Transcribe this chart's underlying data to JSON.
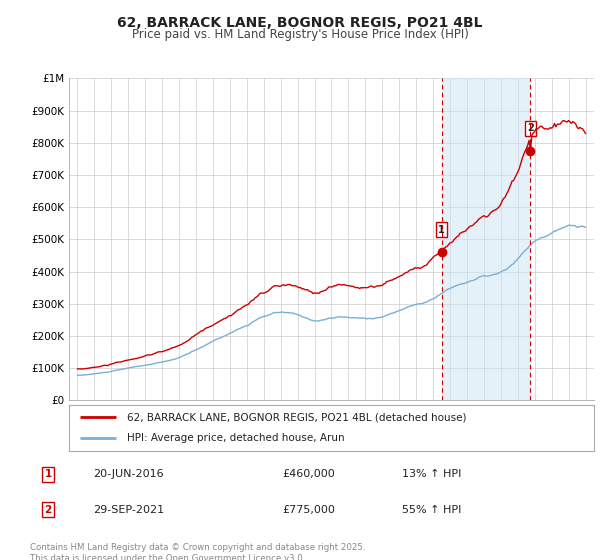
{
  "title": "62, BARRACK LANE, BOGNOR REGIS, PO21 4BL",
  "subtitle": "Price paid vs. HM Land Registry's House Price Index (HPI)",
  "property_label": "62, BARRACK LANE, BOGNOR REGIS, PO21 4BL (detached house)",
  "hpi_label": "HPI: Average price, detached house, Arun",
  "transaction1_date": "20-JUN-2016",
  "transaction1_price": 460000,
  "transaction1_pct": "13% ↑ HPI",
  "transaction2_date": "29-SEP-2021",
  "transaction2_price": 775000,
  "transaction2_pct": "55% ↑ HPI",
  "footer": "Contains HM Land Registry data © Crown copyright and database right 2025.\nThis data is licensed under the Open Government Licence v3.0.",
  "property_color": "#cc0000",
  "hpi_color": "#7bafd4",
  "vline_color": "#cc0000",
  "background_color": "#ffffff",
  "grid_color": "#cccccc",
  "transaction1_x": 2016.5,
  "transaction2_x": 2021.75,
  "xlim_left": 1994.5,
  "xlim_right": 2025.5,
  "ylim": [
    0,
    1000000
  ],
  "ytick_labels": [
    "£0",
    "£100K",
    "£200K",
    "£300K",
    "£400K",
    "£500K",
    "£600K",
    "£700K",
    "£800K",
    "£900K",
    "£1M"
  ]
}
